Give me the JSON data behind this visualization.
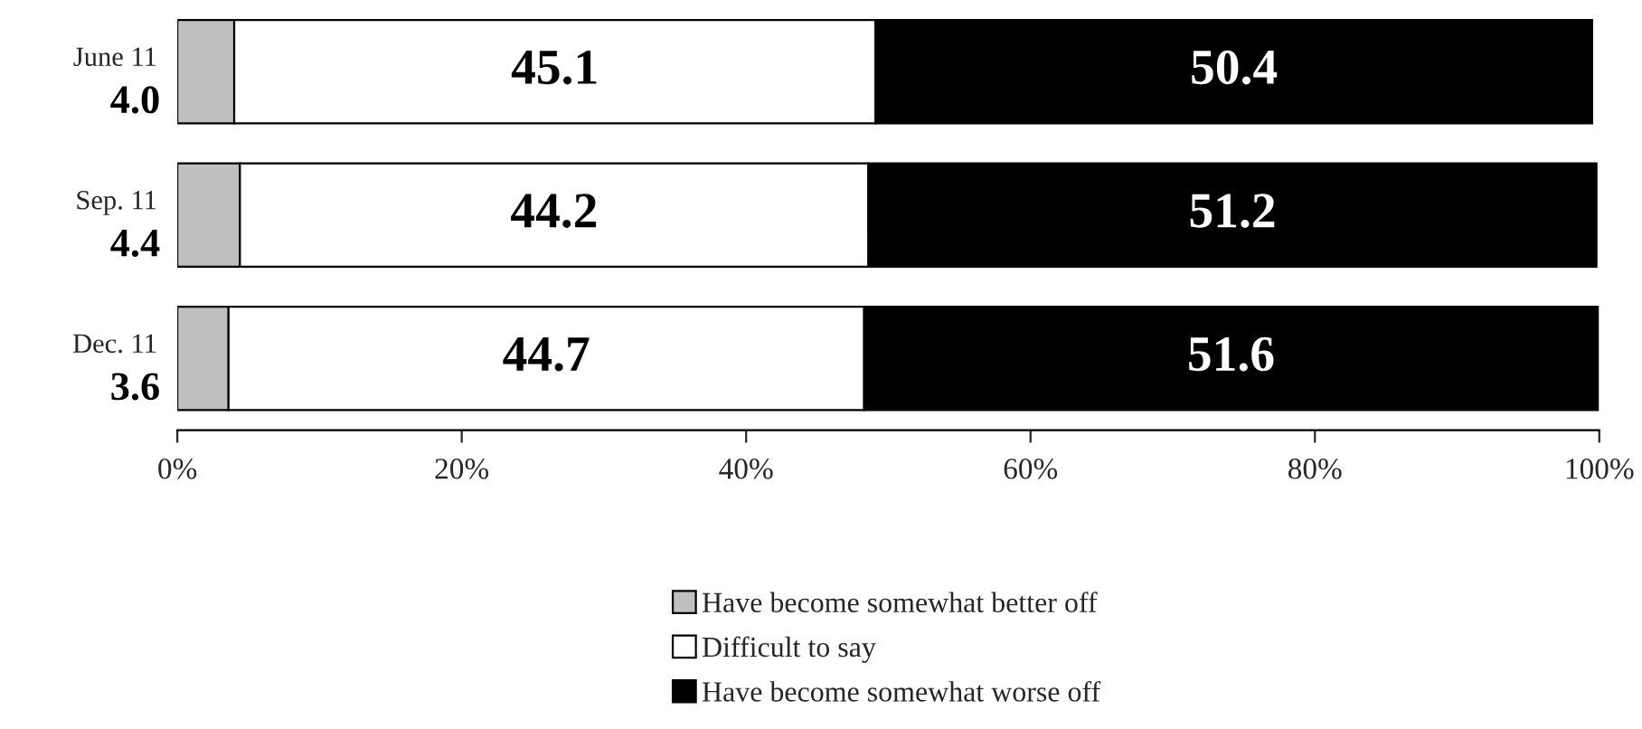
{
  "chart_data": {
    "type": "bar",
    "orientation": "horizontal",
    "stacked": true,
    "categories": [
      "June 11",
      "Sep. 11",
      "Dec. 11"
    ],
    "series": [
      {
        "name": "Have become somewhat better off",
        "color": "#c0c0c0",
        "values": [
          4.0,
          4.4,
          3.6
        ],
        "value_labels": [
          "4.0",
          "4.4",
          "3.6"
        ]
      },
      {
        "name": "Difficult to say",
        "color": "#ffffff",
        "values": [
          45.1,
          44.2,
          44.7
        ],
        "value_labels": [
          "45.1",
          "44.2",
          "44.7"
        ]
      },
      {
        "name": "Have become somewhat worse off",
        "color": "#000000",
        "values": [
          50.4,
          51.2,
          51.6
        ],
        "value_labels": [
          "50.4",
          "51.2",
          "51.6"
        ]
      }
    ],
    "xlim": [
      0,
      100
    ],
    "xticks": [
      {
        "value": 0,
        "label": "0%"
      },
      {
        "value": 20,
        "label": "20%"
      },
      {
        "value": 40,
        "label": "40%"
      },
      {
        "value": 60,
        "label": "60%"
      },
      {
        "value": 80,
        "label": "80%"
      },
      {
        "value": 100,
        "label": "100%"
      }
    ],
    "legend": "bottom"
  }
}
